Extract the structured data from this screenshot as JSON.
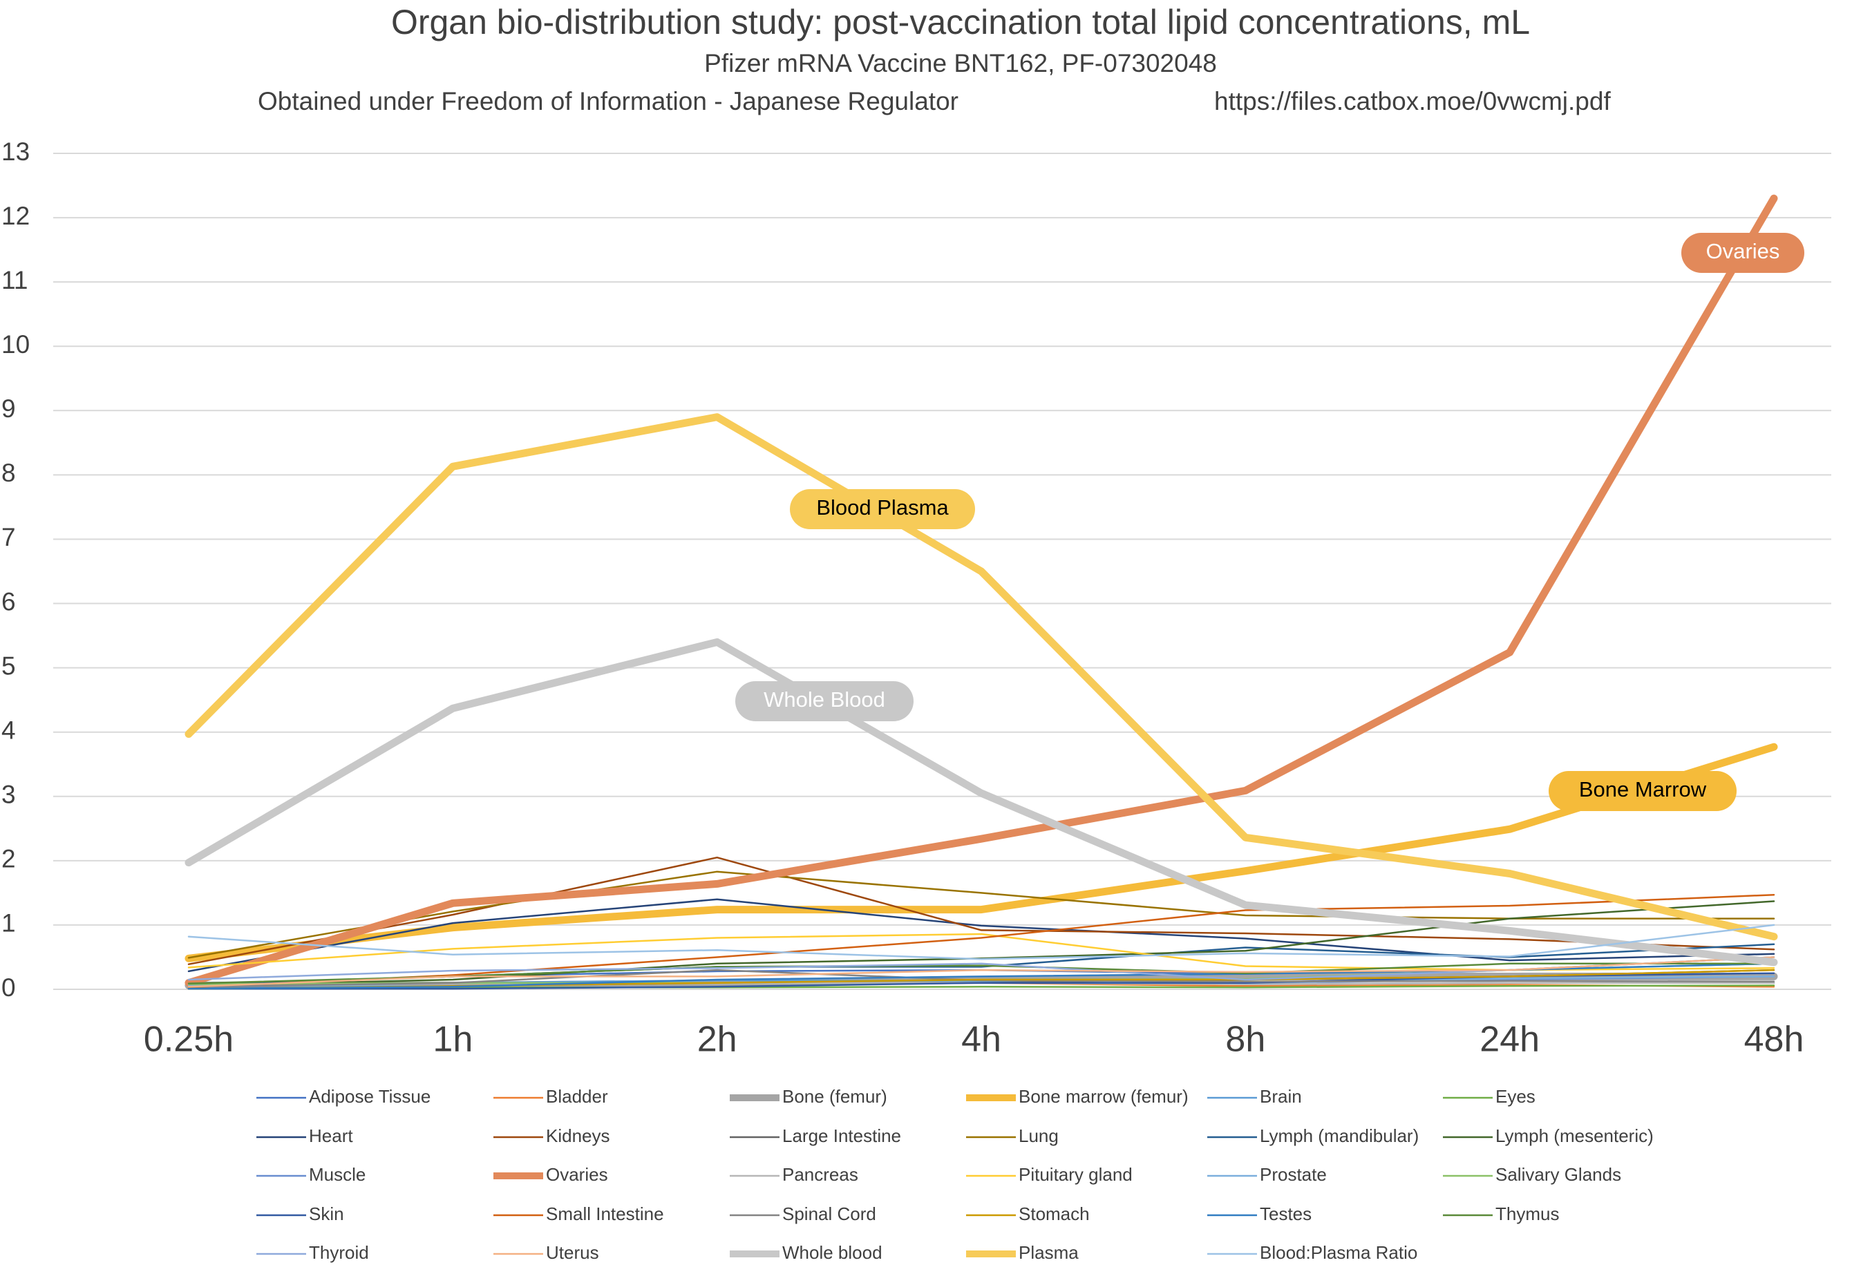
{
  "chart_data": {
    "type": "line",
    "title": "Organ bio-distribution study: post-vaccination total lipid concentrations, mL",
    "subtitle": "Pfizer mRNA Vaccine BNT162, PF-07302048",
    "source": "Obtained under Freedom of Information - Japanese Regulator",
    "url": "https://files.catbox.moe/0vwcmj.pdf",
    "categories": [
      "0.25h",
      "1h",
      "2h",
      "4h",
      "8h",
      "24h",
      "48h"
    ],
    "ylim": [
      0,
      13
    ],
    "yticks": [
      0,
      1,
      2,
      3,
      4,
      5,
      6,
      7,
      8,
      9,
      10,
      11,
      12,
      13
    ],
    "grid": true,
    "annotations": [
      {
        "text": "Ovaries"
      },
      {
        "text": "Blood Plasma"
      },
      {
        "text": "Whole Blood"
      },
      {
        "text": "Bone Marrow"
      }
    ],
    "series": [
      {
        "name": "Adipose Tissue",
        "color": "#4472c4",
        "values": [
          0.06,
          0.2,
          0.28,
          0.3,
          0.24,
          0.3,
          0.5
        ]
      },
      {
        "name": "Bladder",
        "color": "#ed7d31",
        "values": [
          0.04,
          0.05,
          0.05,
          0.1,
          0.05,
          0.07,
          0.04
        ]
      },
      {
        "name": "Bone (femur)",
        "color": "#a5a5a5",
        "thick": true,
        "values": [
          0.06,
          0.06,
          0.09,
          0.15,
          0.2,
          0.2,
          0.2
        ]
      },
      {
        "name": "Bone marrow (femur)",
        "color": "#f5bb3a",
        "thick": true,
        "values": [
          0.48,
          0.96,
          1.24,
          1.24,
          1.84,
          2.49,
          3.77
        ]
      },
      {
        "name": "Brain",
        "color": "#5b9bd5",
        "values": [
          0.05,
          0.1,
          0.14,
          0.13,
          0.08,
          0.1,
          0.1
        ]
      },
      {
        "name": "Eyes",
        "color": "#70ad47",
        "values": [
          0.01,
          0.03,
          0.03,
          0.04,
          0.03,
          0.05,
          0.06
        ]
      },
      {
        "name": "Heart",
        "color": "#264478",
        "values": [
          0.28,
          1.03,
          1.4,
          0.99,
          0.79,
          0.45,
          0.55
        ]
      },
      {
        "name": "Kidneys",
        "color": "#9e480e",
        "values": [
          0.39,
          1.16,
          2.05,
          0.92,
          0.87,
          0.78,
          0.62
        ]
      },
      {
        "name": "Large Intestine",
        "color": "#636363",
        "values": [
          0.01,
          0.05,
          0.1,
          0.1,
          0.15,
          0.2,
          0.3
        ]
      },
      {
        "name": "Lung",
        "color": "#997300",
        "values": [
          0.49,
          1.21,
          1.83,
          1.5,
          1.15,
          1.1,
          1.1
        ]
      },
      {
        "name": "Lymph (mandibular)",
        "color": "#255e91",
        "values": [
          0.06,
          0.2,
          0.35,
          0.35,
          0.65,
          0.5,
          0.7
        ]
      },
      {
        "name": "Lymph (mesenteric)",
        "color": "#43682b",
        "values": [
          0.05,
          0.15,
          0.4,
          0.48,
          0.6,
          1.1,
          1.37
        ]
      },
      {
        "name": "Muscle",
        "color": "#698ed0",
        "values": [
          0.04,
          0.05,
          0.1,
          0.1,
          0.1,
          0.15,
          0.2
        ]
      },
      {
        "name": "Ovaries",
        "color": "#e2895a",
        "thick": true,
        "values": [
          0.1,
          1.34,
          1.64,
          2.34,
          3.09,
          5.24,
          12.3
        ]
      },
      {
        "name": "Pancreas",
        "color": "#b7b7b7",
        "values": [
          0.08,
          0.09,
          0.09,
          0.1,
          0.08,
          0.1,
          0.1
        ]
      },
      {
        "name": "Pituitary gland",
        "color": "#ffcd33",
        "values": [
          0.34,
          0.63,
          0.8,
          0.86,
          0.36,
          0.3,
          0.33
        ]
      },
      {
        "name": "Prostate",
        "color": "#7cafdd",
        "values": [
          0.06,
          0.05,
          0.1,
          0.15,
          0.1,
          0.17,
          0.2
        ]
      },
      {
        "name": "Salivary Glands",
        "color": "#8cc168",
        "values": [
          0.08,
          0.1,
          0.1,
          0.15,
          0.16,
          0.3,
          0.4
        ]
      },
      {
        "name": "Skin",
        "color": "#335aa1",
        "values": [
          0.01,
          0.01,
          0.04,
          0.1,
          0.1,
          0.2,
          0.25
        ]
      },
      {
        "name": "Small Intestine",
        "color": "#d26012",
        "values": [
          0.03,
          0.22,
          0.5,
          0.8,
          1.23,
          1.3,
          1.47
        ]
      },
      {
        "name": "Spinal Cord",
        "color": "#848484",
        "values": [
          0.04,
          0.1,
          0.3,
          0.14,
          0.12,
          0.13,
          0.12
        ]
      },
      {
        "name": "Stomach",
        "color": "#cc9a00",
        "values": [
          0.01,
          0.05,
          0.1,
          0.15,
          0.15,
          0.2,
          0.3
        ]
      },
      {
        "name": "Testes",
        "color": "#327dc2",
        "values": [
          0.01,
          0.04,
          0.15,
          0.2,
          0.24,
          0.3,
          0.4
        ]
      },
      {
        "name": "Thymus",
        "color": "#5a8a39",
        "values": [
          0.09,
          0.2,
          0.35,
          0.37,
          0.25,
          0.4,
          0.4
        ]
      },
      {
        "name": "Thyroid",
        "color": "#8faadc",
        "values": [
          0.15,
          0.29,
          0.33,
          0.4,
          0.15,
          0.3,
          0.5
        ]
      },
      {
        "name": "Uterus",
        "color": "#f4b183",
        "values": [
          0.04,
          0.2,
          0.2,
          0.3,
          0.27,
          0.3,
          0.5
        ]
      },
      {
        "name": "Whole blood",
        "color": "#c8c8c8",
        "thick": true,
        "values": [
          1.97,
          4.37,
          5.4,
          3.05,
          1.31,
          0.91,
          0.42
        ]
      },
      {
        "name": "Plasma",
        "color": "#f7cb58",
        "thick": true,
        "values": [
          3.97,
          8.13,
          8.9,
          6.5,
          2.36,
          1.8,
          0.82
        ]
      },
      {
        "name": "Blood:Plasma Ratio",
        "color": "#9dc3e6",
        "values": [
          0.82,
          0.54,
          0.61,
          0.47,
          0.56,
          0.51,
          1.0
        ]
      }
    ]
  }
}
